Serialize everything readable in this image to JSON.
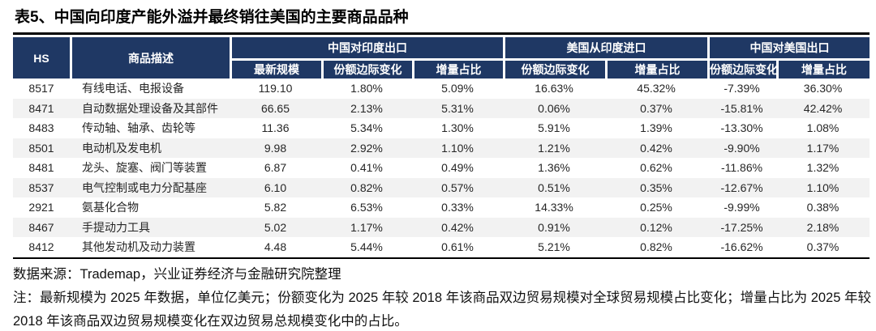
{
  "title": "表5、中国向印度产能外溢并最终销往美国的主要商品品种",
  "table": {
    "col_headers": {
      "hs": "HS",
      "desc": "商品描述",
      "groups": [
        {
          "label": "中国对印度出口",
          "subs": [
            "最新规模",
            "份额边际变化",
            "增量占比"
          ]
        },
        {
          "label": "美国从印度进口",
          "subs": [
            "份额边际变化",
            "增量占比"
          ]
        },
        {
          "label": "中国对美国出口",
          "subs": [
            "份额边际变化",
            "增量占比"
          ]
        }
      ]
    },
    "rows": [
      [
        "8517",
        "有线电话、电报设备",
        "119.10",
        "1.80%",
        "5.09%",
        "16.63%",
        "45.32%",
        "-7.39%",
        "36.30%"
      ],
      [
        "8471",
        "自动数据处理设备及其部件",
        "66.65",
        "2.13%",
        "5.31%",
        "0.06%",
        "0.37%",
        "-15.81%",
        "42.42%"
      ],
      [
        "8483",
        "传动轴、轴承、齿轮等",
        "11.36",
        "5.34%",
        "1.30%",
        "5.91%",
        "1.39%",
        "-13.30%",
        "1.08%"
      ],
      [
        "8501",
        "电动机及发电机",
        "9.98",
        "2.92%",
        "1.10%",
        "1.21%",
        "0.42%",
        "-9.90%",
        "1.17%"
      ],
      [
        "8481",
        "龙头、旋塞、阀门等装置",
        "6.87",
        "0.41%",
        "0.49%",
        "1.36%",
        "0.62%",
        "-11.86%",
        "1.32%"
      ],
      [
        "8537",
        "电气控制或电力分配基座",
        "6.10",
        "0.82%",
        "0.57%",
        "0.51%",
        "0.35%",
        "-12.67%",
        "1.10%"
      ],
      [
        "2921",
        "氨基化合物",
        "5.82",
        "6.53%",
        "0.33%",
        "14.33%",
        "0.25%",
        "-9.99%",
        "0.38%"
      ],
      [
        "8467",
        "手提动力工具",
        "5.02",
        "1.17%",
        "0.42%",
        "0.91%",
        "0.12%",
        "-17.25%",
        "2.18%"
      ],
      [
        "8412",
        "其他发动机及动力装置",
        "4.48",
        "5.44%",
        "0.61%",
        "5.21%",
        "0.82%",
        "-16.62%",
        "0.37%"
      ]
    ]
  },
  "footer": {
    "source": "数据来源：Trademap，兴业证券经济与金融研究院整理",
    "note": "注：最新规模为 2025 年数据，单位亿美元；份额变化为 2025 年较 2018 年该商品双边贸易规模对全球贸易规模占比变化；增量占比为 2025 年较 2018 年该商品双边贸易规模变化在双边贸易总规模变化中的占比。"
  },
  "colors": {
    "header_bg": "#1f3864",
    "header_text": "#ffffff",
    "zebra_row": "#f2f2f2",
    "rule": "#000000"
  }
}
